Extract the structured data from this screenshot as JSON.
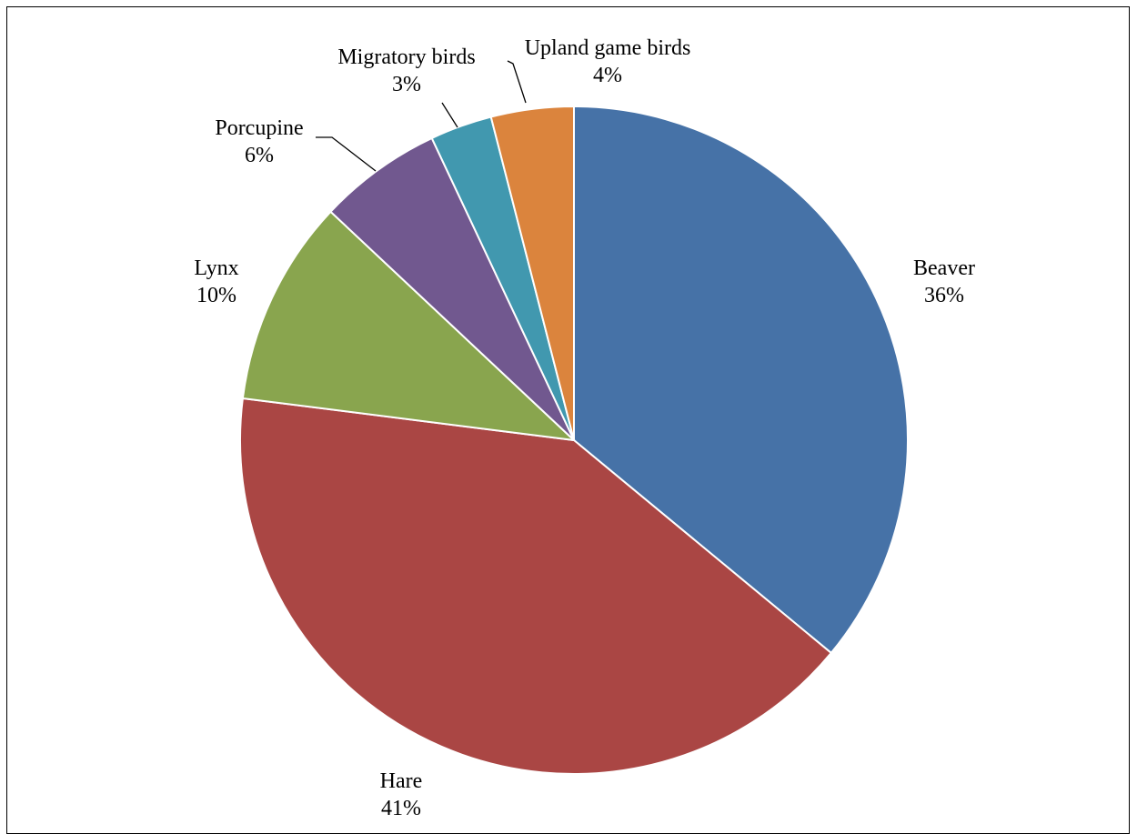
{
  "chart_data": {
    "type": "pie",
    "title": "",
    "start": "12 o'clock",
    "direction": "clockwise",
    "slices": [
      {
        "label": "Beaver",
        "value": 36,
        "display": "36%",
        "color": "#4672A7"
      },
      {
        "label": "Hare",
        "value": 41,
        "display": "41%",
        "color": "#AA4644"
      },
      {
        "label": "Lynx",
        "value": 10,
        "display": "10%",
        "color": "#89A54E"
      },
      {
        "label": "Porcupine",
        "value": 6,
        "display": "6%",
        "color": "#71588F"
      },
      {
        "label": "Migratory birds",
        "value": 3,
        "display": "3%",
        "color": "#4198AF"
      },
      {
        "label": "Upland game birds",
        "value": 4,
        "display": "4%",
        "color": "#DB843D"
      }
    ]
  }
}
